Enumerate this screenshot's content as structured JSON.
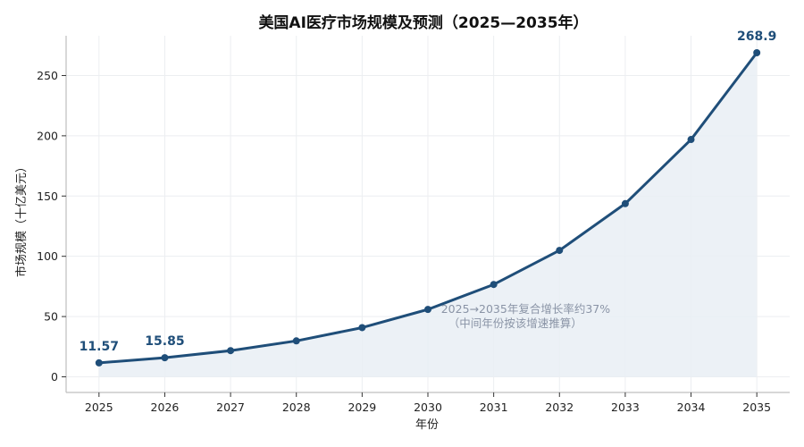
{
  "colors": {
    "line": "#1f4e79",
    "fill": "#e9eef4",
    "grid": "#eceef1",
    "axis": "#bfbfbf",
    "annotation": "#8a94a6"
  },
  "chart_data": {
    "type": "line",
    "title": "美国AI医疗市场规模及预测（2025—2035年）",
    "xlabel": "年份",
    "ylabel": "市场规模（十亿美元）",
    "x": [
      2025,
      2026,
      2027,
      2028,
      2029,
      2030,
      2031,
      2032,
      2033,
      2034,
      2035
    ],
    "series": [
      {
        "values": [
          11.57,
          15.85,
          21.7,
          29.8,
          40.8,
          55.9,
          76.6,
          104.9,
          143.7,
          196.9,
          268.9
        ],
        "area_fill": true
      }
    ],
    "yticks": [
      0,
      50,
      100,
      150,
      200,
      250
    ],
    "ylim": [
      -13,
      283
    ],
    "xlim": [
      2024.5,
      2035.5
    ],
    "grid": true,
    "data_labels": [
      {
        "index": 0,
        "text": "11.57"
      },
      {
        "index": 1,
        "text": "15.85"
      },
      {
        "index": 10,
        "text": "268.9"
      }
    ],
    "annotation": {
      "lines": [
        "2025→2035年复合增长率约37%",
        "（中间年份按该增速推算）"
      ],
      "anchor_x": 2030.2,
      "anchor_y": 50
    }
  }
}
